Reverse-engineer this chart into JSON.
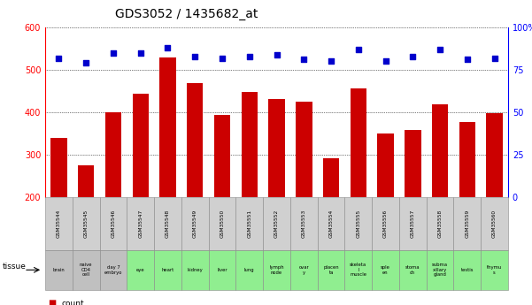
{
  "title": "GDS3052 / 1435682_at",
  "gsm_labels": [
    "GSM35544",
    "GSM35545",
    "GSM35546",
    "GSM35547",
    "GSM35548",
    "GSM35549",
    "GSM35550",
    "GSM35551",
    "GSM35552",
    "GSM35553",
    "GSM35554",
    "GSM35555",
    "GSM35556",
    "GSM35557",
    "GSM35558",
    "GSM35559",
    "GSM35560"
  ],
  "tissue_labels": [
    "brain",
    "naive\nCD4\ncell",
    "day 7\nembryо",
    "eye",
    "heart",
    "kidney",
    "liver",
    "lung",
    "lymph\nnode",
    "ovar\ny",
    "placen\nta",
    "skeleta\nl\nmuscle",
    "sple\nen",
    "stoma\nch",
    "subma\nxillary\ngland",
    "testis",
    "thymu\ns"
  ],
  "tissue_colors": [
    "#c0c0c0",
    "#c0c0c0",
    "#c0c0c0",
    "#90ee90",
    "#90ee90",
    "#90ee90",
    "#90ee90",
    "#90ee90",
    "#90ee90",
    "#90ee90",
    "#90ee90",
    "#90ee90",
    "#90ee90",
    "#90ee90",
    "#90ee90",
    "#90ee90",
    "#90ee90"
  ],
  "counts": [
    340,
    275,
    400,
    443,
    530,
    468,
    394,
    447,
    430,
    425,
    290,
    455,
    350,
    357,
    418,
    377,
    398
  ],
  "percentile_ranks": [
    82,
    79,
    85,
    85,
    88,
    83,
    82,
    83,
    84,
    81,
    80,
    87,
    80,
    83,
    87,
    81,
    82
  ],
  "bar_color": "#cc0000",
  "dot_color": "#0000cc",
  "ylim_left": [
    200,
    600
  ],
  "ylim_right": [
    0,
    100
  ],
  "yticks_left": [
    200,
    300,
    400,
    500,
    600
  ],
  "yticks_right": [
    0,
    25,
    50,
    75,
    100
  ],
  "bar_width": 0.6,
  "figsize": [
    6.01,
    3.45
  ],
  "dpi": 100
}
